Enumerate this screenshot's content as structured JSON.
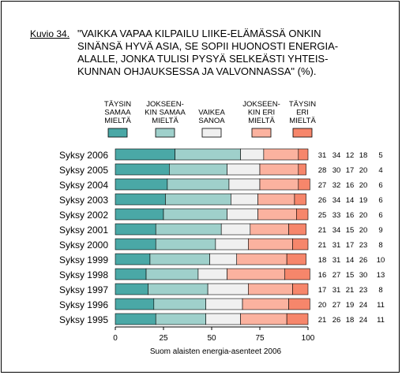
{
  "figure_label": "Kuvio 34.",
  "title_lines": [
    "\"VAIKKA VAPAA KILPAILU LIIKE-ELÄMÄSSÄ ONKIN",
    "SINÄNSÄ HYVÄ ASIA, SE SOPII HUONOSTI ENERGIA-",
    "ALALLE, JONKA TULISI PYSYÄ SELKEÄSTI YHTEIS-",
    "KUNNAN OHJAUKSESSA JA VALVONNASSA\" (%)."
  ],
  "chart_data": {
    "type": "bar",
    "orientation": "horizontal",
    "stacked": true,
    "categories": [
      "Syksy 2006",
      "Syksy 2005",
      "Syksy 2004",
      "Syksy 2003",
      "Syksy 2002",
      "Syksy 2001",
      "Syksy 2000",
      "Syksy 1999",
      "Syksy 1998",
      "Syksy 1997",
      "Syksy 1996",
      "Syksy 1995"
    ],
    "series": [
      {
        "name": "TÄYSIN SAMAA MIELTÄ",
        "name_lines": [
          "TÄYSIN",
          "SAMAA",
          "MIELTÄ"
        ],
        "color": "#4aa8a6",
        "values": [
          31,
          28,
          27,
          26,
          25,
          21,
          21,
          18,
          16,
          17,
          20,
          21
        ]
      },
      {
        "name": "JOKSEENKIN SAMAA MIELTÄ",
        "name_lines": [
          "JOKSEEN-",
          "KIN SAMAA",
          "MIELTÄ"
        ],
        "color": "#9fd0cb",
        "values": [
          34,
          30,
          32,
          34,
          33,
          34,
          31,
          31,
          27,
          31,
          27,
          26
        ]
      },
      {
        "name": "VAIKEA SANOA",
        "name_lines": [
          "VAIKEA",
          "SANOA"
        ],
        "color": "#f0f0f0",
        "values": [
          12,
          17,
          16,
          14,
          16,
          15,
          17,
          14,
          15,
          21,
          19,
          18
        ]
      },
      {
        "name": "JOKSEENKIN ERI MIELTÄ",
        "name_lines": [
          "JOKSEEN-",
          "KIN ERI",
          "MIELTÄ"
        ],
        "color": "#fbb29f",
        "values": [
          18,
          20,
          20,
          19,
          20,
          20,
          23,
          26,
          30,
          23,
          24,
          24
        ]
      },
      {
        "name": "TÄYSIN ERI MIELTÄ",
        "name_lines": [
          "TÄYSIN",
          "ERI",
          "MIELTÄ"
        ],
        "color": "#f6866b",
        "values": [
          5,
          4,
          6,
          6,
          6,
          9,
          8,
          10,
          13,
          8,
          11,
          11
        ]
      }
    ],
    "xlim": [
      0,
      100
    ],
    "xticks": [
      0,
      25,
      50,
      75,
      100
    ],
    "xlabel": "Suom alaisten energia-asenteet 2006",
    "legend_position": "top",
    "grid": false
  }
}
